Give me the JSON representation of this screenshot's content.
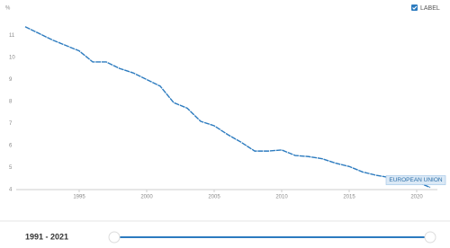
{
  "chart_data": {
    "type": "line",
    "y_label": "%",
    "legend_label": "LABEL",
    "x": [
      1991,
      1992,
      1993,
      1994,
      1995,
      1996,
      1997,
      1998,
      1999,
      2000,
      2001,
      2002,
      2003,
      2004,
      2005,
      2006,
      2007,
      2008,
      2009,
      2010,
      2011,
      2012,
      2013,
      2014,
      2015,
      2016,
      2017,
      2018,
      2019,
      2020,
      2021
    ],
    "series": [
      {
        "name": "EUROPEAN UNION",
        "color": "#2c7bbf",
        "values": [
          11.4,
          11.1,
          10.8,
          10.55,
          10.3,
          9.8,
          9.8,
          9.5,
          9.3,
          9.0,
          8.7,
          7.95,
          7.7,
          7.1,
          6.9,
          6.5,
          6.15,
          5.75,
          5.75,
          5.8,
          5.55,
          5.5,
          5.4,
          5.2,
          5.05,
          4.8,
          4.65,
          4.55,
          4.5,
          4.35,
          4.1
        ]
      }
    ],
    "xlim": [
      1991,
      2021
    ],
    "xticks": [
      1995,
      2000,
      2005,
      2010,
      2015,
      2020
    ],
    "ylim": [
      4,
      12
    ],
    "yticks": [
      4,
      5,
      6,
      7,
      8,
      9,
      10,
      11
    ]
  },
  "range": "1991 - 2021"
}
